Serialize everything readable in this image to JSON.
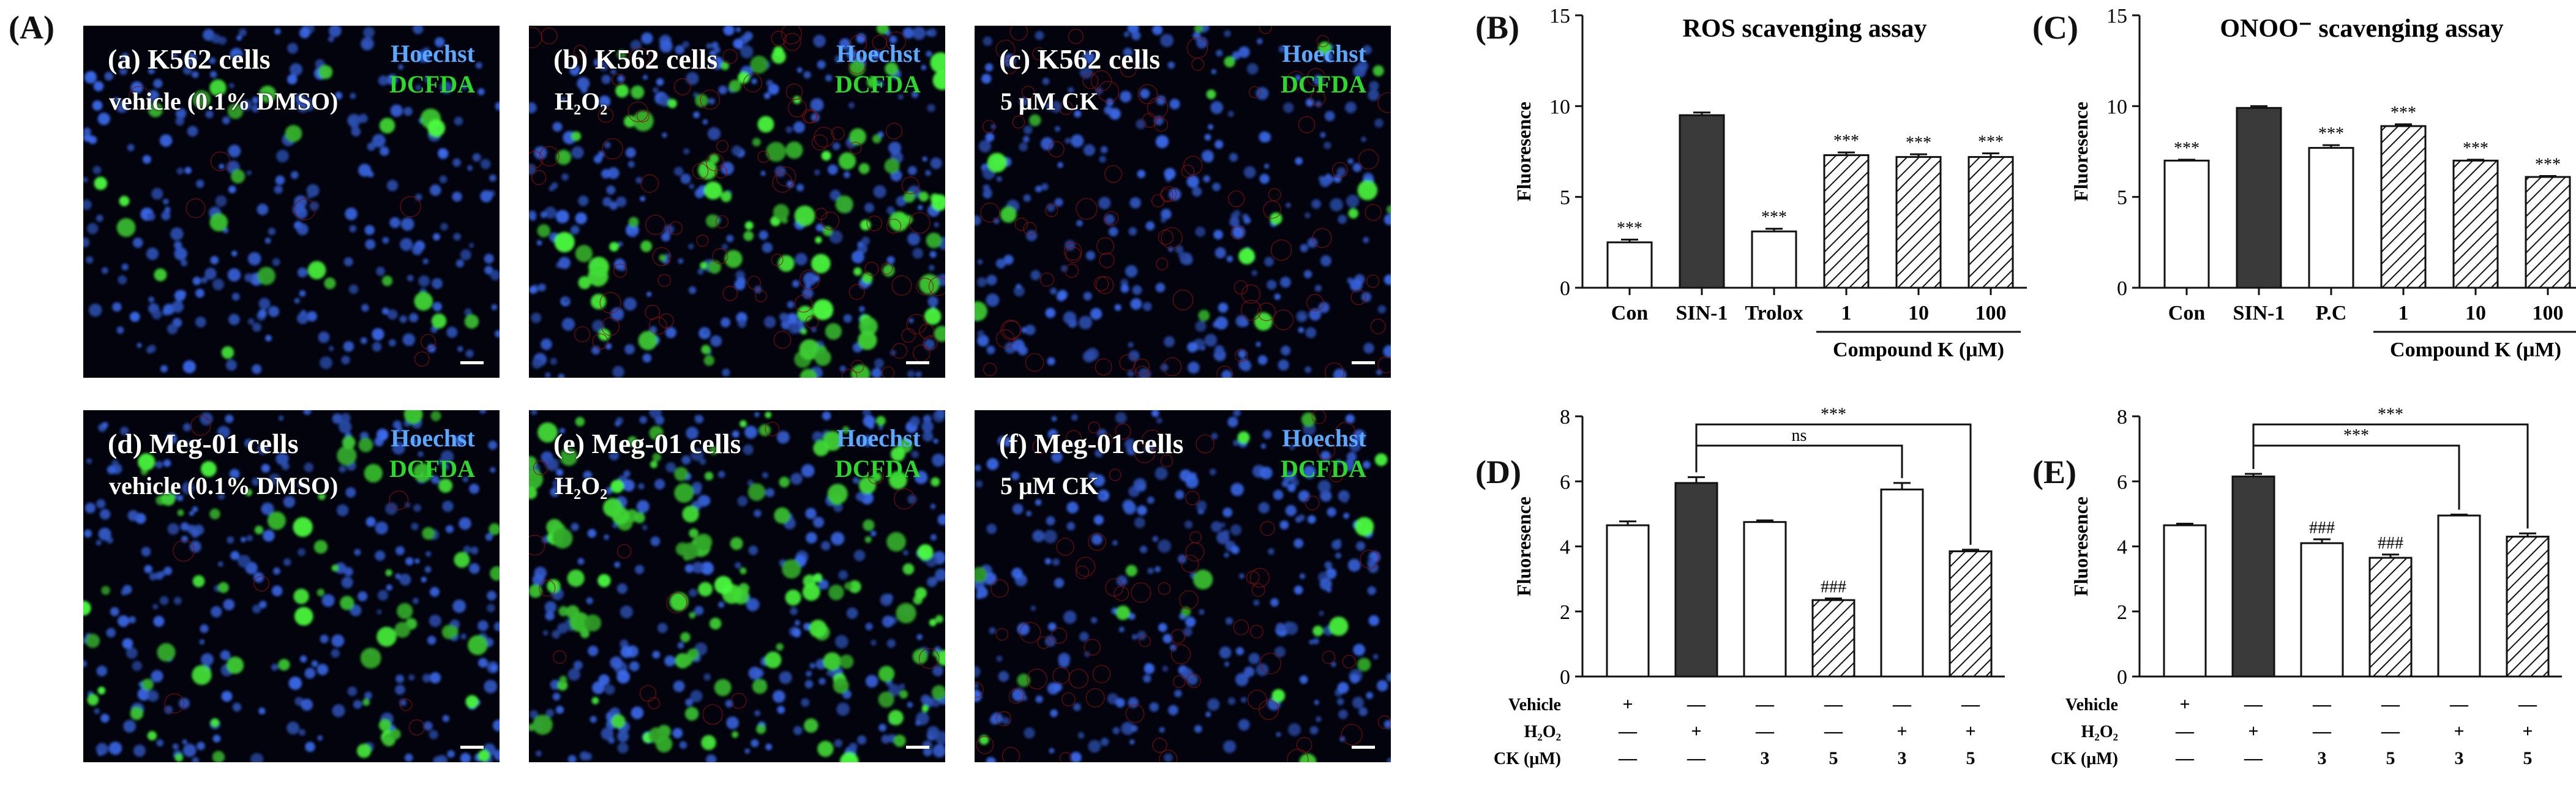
{
  "panel_labels": {
    "A": "(A)",
    "B": "(B)",
    "C": "(C)",
    "D": "(D)",
    "E": "(E)"
  },
  "micrographs": [
    {
      "id": "a",
      "title": "(a) K562 cells",
      "condition": "vehicle (0.1% DMSO)",
      "ch1": "Hoechst",
      "ch2": "DCFDA",
      "green_level": 0.15,
      "red_level": 0.05
    },
    {
      "id": "b",
      "title": "(b) K562 cells",
      "condition": "H₂O₂",
      "ch1": "Hoechst",
      "ch2": "DCFDA",
      "green_level": 0.6,
      "red_level": 0.6
    },
    {
      "id": "c",
      "title": "(c) K562 cells",
      "condition": "5 μM CK",
      "ch1": "Hoechst",
      "ch2": "DCFDA",
      "green_level": 0.1,
      "red_level": 0.6
    },
    {
      "id": "d",
      "title": "(d) Meg-01 cells",
      "condition": "vehicle (0.1% DMSO)",
      "ch1": "Hoechst",
      "ch2": "DCFDA",
      "green_level": 0.4,
      "red_level": 0.05
    },
    {
      "id": "e",
      "title": "(e) Meg-01 cells",
      "condition": "H₂O₂",
      "ch1": "Hoechst",
      "ch2": "DCFDA",
      "green_level": 0.8,
      "red_level": 0.1
    },
    {
      "id": "f",
      "title": "(f) Meg-01 cells",
      "condition": "5 μM CK",
      "ch1": "Hoechst",
      "ch2": "DCFDA",
      "green_level": 0.1,
      "red_level": 0.5
    }
  ],
  "chart_data": [
    {
      "id": "B",
      "type": "bar",
      "title": "ROS scavenging assay",
      "ylabel": "Fluoresence",
      "ylim": [
        0,
        15
      ],
      "yticks": [
        0,
        5,
        10,
        15
      ],
      "categories": [
        "Con",
        "SIN-1",
        "Trolox",
        "1",
        "10",
        "100"
      ],
      "values": [
        2.5,
        9.5,
        3.1,
        7.3,
        7.2,
        7.2
      ],
      "errors": [
        0.15,
        0.15,
        0.15,
        0.15,
        0.15,
        0.2
      ],
      "fills": [
        "white",
        "dark",
        "white",
        "hatch",
        "hatch",
        "hatch"
      ],
      "annotations": [
        "***",
        "",
        "***",
        "***",
        "***",
        "***"
      ],
      "group_label": "Compound K (μM)",
      "group_span": [
        3,
        5
      ]
    },
    {
      "id": "C",
      "type": "bar",
      "title": "ONOO⁻ scavenging assay",
      "ylabel": "Fluoresence",
      "ylim": [
        0,
        15
      ],
      "yticks": [
        0,
        5,
        10,
        15
      ],
      "categories": [
        "Con",
        "SIN-1",
        "P.C",
        "1",
        "10",
        "100"
      ],
      "values": [
        7.0,
        9.9,
        7.7,
        8.9,
        7.0,
        6.1
      ],
      "errors": [
        0.05,
        0.1,
        0.15,
        0.1,
        0.05,
        0.05
      ],
      "fills": [
        "white",
        "dark",
        "white",
        "hatch",
        "hatch",
        "hatch"
      ],
      "annotations": [
        "***",
        "",
        "***",
        "***",
        "***",
        "***"
      ],
      "group_label": "Compound K (μM)",
      "group_span": [
        3,
        5
      ]
    },
    {
      "id": "D",
      "type": "bar",
      "ylabel": "Fluoresence",
      "ylim": [
        0,
        8
      ],
      "yticks": [
        0,
        2,
        4,
        6,
        8
      ],
      "values": [
        4.65,
        5.95,
        4.75,
        2.35,
        5.75,
        3.85
      ],
      "errors": [
        0.12,
        0.18,
        0.05,
        0.05,
        0.2,
        0.05
      ],
      "fills": [
        "white",
        "dark",
        "white",
        "hatch",
        "white",
        "hatch"
      ],
      "annotations": [
        "",
        "",
        "",
        "###",
        "",
        ""
      ],
      "brackets": [
        {
          "from": 1,
          "to": 4,
          "label": "ns",
          "level": 7.1
        },
        {
          "from": 1,
          "to": 5,
          "label": "***",
          "level": 7.75
        }
      ],
      "rows": [
        {
          "name": "Vehicle",
          "cells": [
            "+",
            "—",
            "—",
            "—",
            "—",
            "—"
          ]
        },
        {
          "name": "H₂O₂",
          "cells": [
            "—",
            "+",
            "—",
            "—",
            "+",
            "+"
          ]
        },
        {
          "name": "CK (μM)",
          "cells": [
            "—",
            "—",
            "3",
            "5",
            "3",
            "5"
          ]
        }
      ]
    },
    {
      "id": "E",
      "type": "bar",
      "ylabel": "Fluoresence",
      "ylim": [
        0,
        8
      ],
      "yticks": [
        0,
        2,
        4,
        6,
        8
      ],
      "values": [
        4.65,
        6.15,
        4.1,
        3.65,
        4.95,
        4.3
      ],
      "errors": [
        0.05,
        0.08,
        0.12,
        0.1,
        0.03,
        0.1
      ],
      "fills": [
        "white",
        "dark",
        "white",
        "hatch",
        "white",
        "hatch"
      ],
      "annotations": [
        "",
        "",
        "###",
        "###",
        "",
        ""
      ],
      "brackets": [
        {
          "from": 1,
          "to": 4,
          "label": "***",
          "level": 7.1
        },
        {
          "from": 1,
          "to": 5,
          "label": "***",
          "level": 7.75
        }
      ],
      "rows": [
        {
          "name": "Vehicle",
          "cells": [
            "+",
            "—",
            "—",
            "—",
            "—",
            "—"
          ]
        },
        {
          "name": "H₂O₂",
          "cells": [
            "—",
            "+",
            "—",
            "—",
            "+",
            "+"
          ]
        },
        {
          "name": "CK (μM)",
          "cells": [
            "—",
            "—",
            "3",
            "5",
            "3",
            "5"
          ]
        }
      ]
    }
  ]
}
